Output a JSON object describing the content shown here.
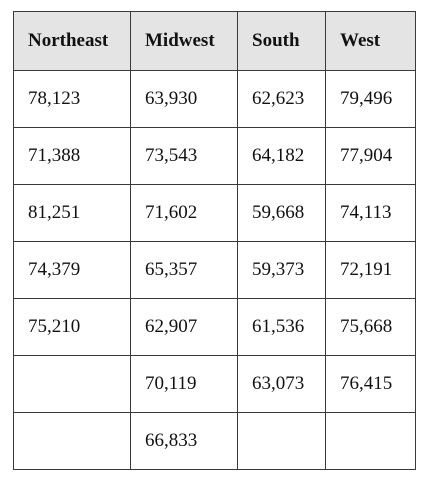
{
  "table": {
    "header": [
      "Northeast",
      "Midwest",
      "South",
      "West"
    ],
    "rows": [
      [
        "78,123",
        "63,930",
        "62,623",
        "79,496"
      ],
      [
        "71,388",
        "73,543",
        "64,182",
        "77,904"
      ],
      [
        "81,251",
        "71,602",
        "59,668",
        "74,113"
      ],
      [
        "74,379",
        "65,357",
        "59,373",
        "72,191"
      ],
      [
        "75,210",
        "62,907",
        "61,536",
        "75,668"
      ],
      [
        null,
        "70,119",
        "63,073",
        "76,415"
      ],
      [
        null,
        "66,833",
        null,
        null
      ]
    ]
  }
}
